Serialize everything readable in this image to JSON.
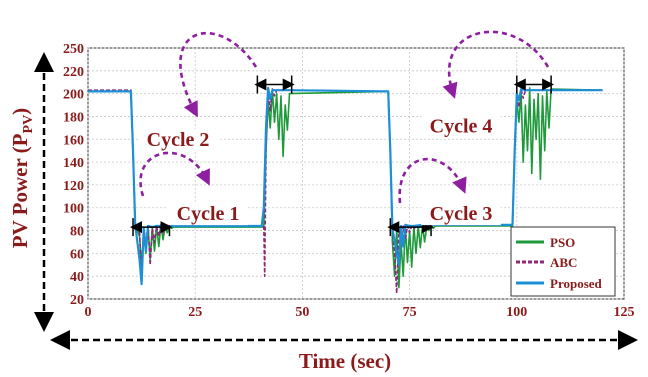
{
  "chart_data": {
    "type": "line",
    "xlabel": "Time (sec)",
    "ylabel_main": "PV Power (P",
    "ylabel_sub": "PV",
    "ylabel_close": ")",
    "xlim": [
      0,
      125
    ],
    "ylim": [
      20,
      250
    ],
    "xticks": [
      0,
      25,
      50,
      75,
      100,
      125
    ],
    "yticks": [
      20,
      40,
      60,
      80,
      100,
      120,
      140,
      160,
      180,
      200,
      220,
      250
    ],
    "grid": true,
    "legend_position": "bottom-right",
    "colors": {
      "PSO": "#1f9a3a",
      "ABC": "#8b2a7a",
      "Proposed": "#1c8fd6",
      "annotation": "#8b1a1a",
      "arc": "#8e1fa0",
      "axis_text": "#8b1a1a"
    },
    "annotations": [
      {
        "label": "Cycle 1",
        "x": 28,
        "y": 90
      },
      {
        "label": "Cycle 2",
        "x": 21,
        "y": 155
      },
      {
        "label": "Cycle 3",
        "x": 87,
        "y": 90
      },
      {
        "label": "Cycle 4",
        "x": 87,
        "y": 167
      }
    ],
    "series": [
      {
        "name": "PSO",
        "x": [
          0,
          10,
          10.5,
          11,
          12,
          12.5,
          13,
          13.5,
          14,
          14.5,
          15,
          15.5,
          16,
          16.5,
          17,
          17.5,
          18,
          18.5,
          19,
          19.5,
          20,
          41,
          41.5,
          42,
          42.5,
          43,
          43.5,
          44,
          44.5,
          45,
          45.5,
          46,
          46.5,
          47,
          70,
          70.5,
          71,
          71.5,
          72,
          72.5,
          73,
          73.5,
          74,
          74.5,
          75,
          75.5,
          76,
          76.5,
          77,
          77.5,
          78,
          78.5,
          79,
          79.5,
          80,
          80.5,
          81,
          99,
          99.5,
          100,
          100.5,
          101,
          101.5,
          102,
          102.5,
          103,
          103.5,
          104,
          104.5,
          105,
          105.5,
          106,
          106.5,
          107,
          107.5,
          108,
          120
        ],
        "y": [
          202,
          202,
          150,
          85,
          75,
          48,
          78,
          60,
          84,
          55,
          82,
          62,
          84,
          66,
          85,
          72,
          83,
          78,
          84,
          82,
          83,
          83,
          150,
          195,
          170,
          203,
          175,
          200,
          160,
          198,
          145,
          190,
          168,
          200,
          202,
          150,
          70,
          40,
          82,
          30,
          70,
          40,
          84,
          52,
          80,
          48,
          84,
          60,
          84,
          65,
          85,
          70,
          84,
          80,
          85,
          82,
          84,
          84,
          150,
          195,
          175,
          200,
          140,
          190,
          150,
          205,
          130,
          195,
          160,
          200,
          125,
          198,
          150,
          202,
          170,
          204,
          203
        ]
      },
      {
        "name": "ABC",
        "x": [
          0,
          10,
          10.5,
          11,
          12,
          12.5,
          13,
          13.5,
          14,
          14.5,
          15,
          15.5,
          16,
          16.5,
          17,
          17.5,
          18,
          18.5,
          19,
          20,
          41,
          41.2,
          41.5,
          42,
          42.5,
          43,
          43.5,
          44,
          45,
          46,
          47,
          70,
          70.5,
          71,
          71.5,
          72,
          72.5,
          73,
          73.5,
          74,
          74.5,
          75,
          75.5,
          76,
          77,
          78,
          80,
          99,
          99.5,
          100,
          100.5,
          101,
          101.5,
          102,
          103,
          104,
          120
        ],
        "y": [
          203,
          203,
          150,
          85,
          80,
          40,
          82,
          70,
          84,
          50,
          82,
          70,
          84,
          75,
          85,
          78,
          84,
          82,
          84,
          84,
          84,
          40,
          150,
          205,
          185,
          204,
          198,
          203,
          203,
          203,
          203,
          202,
          150,
          80,
          60,
          25,
          82,
          70,
          84,
          72,
          84,
          78,
          84,
          82,
          84,
          84,
          85,
          85,
          150,
          200,
          188,
          204,
          196,
          203,
          203,
          203,
          203
        ]
      },
      {
        "name": "Proposed",
        "x": [
          0,
          10,
          10.5,
          11,
          12,
          12.5,
          13,
          13.5,
          14,
          15,
          16,
          17,
          18,
          20,
          40.5,
          41,
          41.5,
          42,
          42.5,
          43,
          44,
          45,
          47,
          70,
          70.5,
          71,
          72,
          72.5,
          73,
          73.5,
          74,
          75,
          76,
          78,
          80,
          99,
          99.5,
          100,
          100.5,
          101,
          102,
          103,
          120
        ],
        "y": [
          202,
          202,
          150,
          85,
          55,
          33,
          82,
          62,
          84,
          83,
          84,
          84,
          84,
          84,
          84,
          100,
          170,
          205,
          195,
          203,
          203,
          203,
          203,
          202,
          150,
          82,
          60,
          50,
          84,
          66,
          85,
          84,
          84,
          85,
          85,
          85,
          150,
          200,
          194,
          204,
          203,
          203,
          203
        ]
      }
    ]
  }
}
